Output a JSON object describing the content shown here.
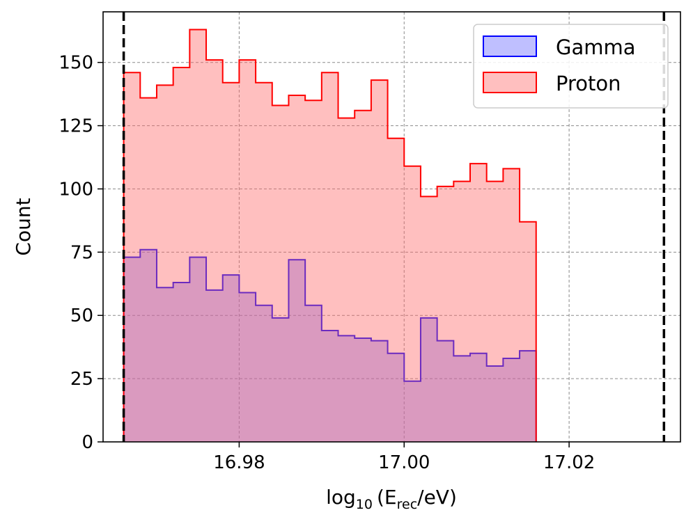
{
  "chart_data": {
    "type": "histogram",
    "title": "",
    "xlabel_base": "log",
    "xlabel_sub1": "10",
    "xlabel_mid": "(E",
    "xlabel_sub2": "rec",
    "xlabel_end": "/eV)",
    "ylabel": "Count",
    "xlim": [
      16.9635,
      17.0335
    ],
    "ylim": [
      0,
      170
    ],
    "x_ticks": [
      16.98,
      17.0,
      17.02
    ],
    "x_tick_labels": [
      "16.98",
      "17.00",
      "17.02"
    ],
    "y_ticks": [
      0,
      25,
      50,
      75,
      100,
      125,
      150
    ],
    "y_tick_labels": [
      "0",
      "25",
      "50",
      "75",
      "100",
      "125",
      "150"
    ],
    "grid": true,
    "legend_position": "top-right",
    "bin_start": 16.966,
    "bin_width": 0.002,
    "vlines": [
      16.966,
      17.0315
    ],
    "series": [
      {
        "name": "Gamma",
        "edge_color": "#0000ff",
        "fill_color": "#6666ff",
        "values": [
          73,
          76,
          61,
          63,
          73,
          60,
          66,
          59,
          54,
          49,
          72,
          54,
          44,
          42,
          41,
          40,
          35,
          24,
          49,
          40,
          34,
          35,
          30,
          33,
          36
        ]
      },
      {
        "name": "Proton",
        "edge_color": "#ff0000",
        "fill_color": "#ff6666",
        "values": [
          146,
          136,
          141,
          148,
          163,
          151,
          142,
          151,
          142,
          133,
          137,
          135,
          146,
          128,
          131,
          143,
          120,
          109,
          97,
          101,
          103,
          110,
          103,
          108,
          87
        ]
      }
    ]
  }
}
